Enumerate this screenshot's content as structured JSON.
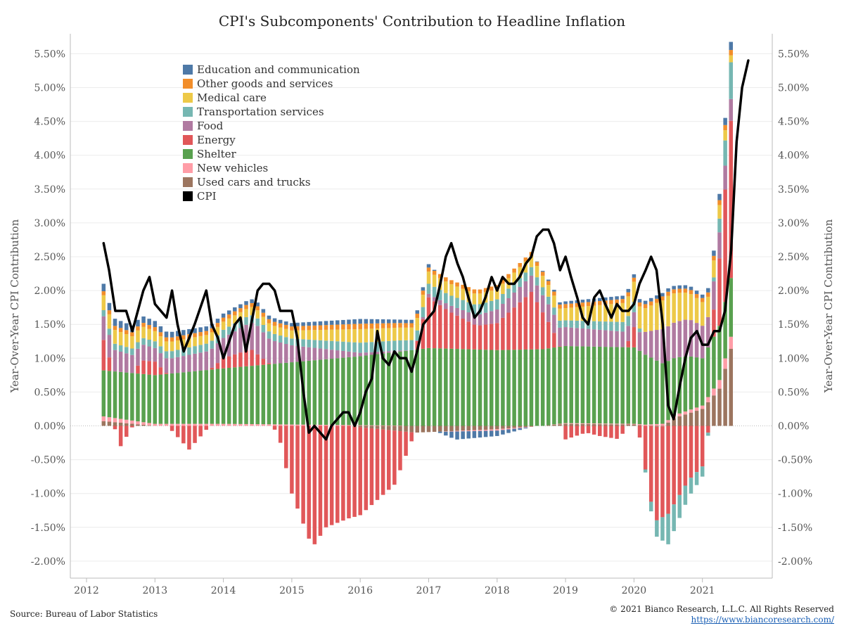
{
  "chart_data": {
    "type": "bar",
    "stacked": true,
    "title": "CPI's Subcomponents' Contribution to Headline Inflation",
    "ylabel_left": "Year-Over-Year CPI Contribution",
    "ylabel_right": "Year-Over-Year CPI Contribution",
    "ylim": [
      -2.0,
      5.6
    ],
    "y_ticks": [
      "-2.00%",
      "-1.50%",
      "-1.00%",
      "-0.50%",
      "0.00%",
      "0.50%",
      "1.00%",
      "1.50%",
      "2.00%",
      "2.50%",
      "3.00%",
      "3.50%",
      "4.00%",
      "4.50%",
      "5.00%",
      "5.50%"
    ],
    "x_ticks": [
      "2012",
      "2013",
      "2014",
      "2015",
      "2016",
      "2017",
      "2018",
      "2019",
      "2020",
      "2021"
    ],
    "x_start": "2012-04",
    "x_end": "2021-06",
    "legend_position": "top-left",
    "series": [
      {
        "name": "Used cars and trucks",
        "color": "#9c755f",
        "knots": [
          [
            2012.25,
            0.07
          ],
          [
            2013,
            0.0
          ],
          [
            2014,
            0.0
          ],
          [
            2015,
            0.0
          ],
          [
            2015.8,
            0.0
          ],
          [
            2016.8,
            -0.1
          ],
          [
            2018,
            -0.05
          ],
          [
            2019,
            0.03
          ],
          [
            2020,
            0.02
          ],
          [
            2020.4,
            -0.02
          ],
          [
            2020.6,
            0.12
          ],
          [
            2021,
            0.25
          ],
          [
            2021.25,
            0.55
          ],
          [
            2021.42,
            1.15
          ]
        ]
      },
      {
        "name": "New vehicles",
        "color": "#ff9da7",
        "knots": [
          [
            2012.25,
            0.07
          ],
          [
            2013,
            0.03
          ],
          [
            2014,
            0.03
          ],
          [
            2015,
            0.02
          ],
          [
            2016,
            0.01
          ],
          [
            2017,
            0.0
          ],
          [
            2018,
            -0.02
          ],
          [
            2019,
            0.01
          ],
          [
            2020,
            0.01
          ],
          [
            2020.6,
            0.04
          ],
          [
            2021,
            0.05
          ],
          [
            2021.42,
            0.18
          ]
        ]
      },
      {
        "name": "Shelter",
        "color": "#59a14f",
        "knots": [
          [
            2012.25,
            0.68
          ],
          [
            2013,
            0.72
          ],
          [
            2014,
            0.82
          ],
          [
            2015,
            0.92
          ],
          [
            2016,
            1.02
          ],
          [
            2017,
            1.15
          ],
          [
            2018,
            1.12
          ],
          [
            2019,
            1.14
          ],
          [
            2020,
            1.13
          ],
          [
            2020.4,
            0.9
          ],
          [
            2020.8,
            0.8
          ],
          [
            2021,
            0.7
          ],
          [
            2021.42,
            0.87
          ]
        ]
      },
      {
        "name": "Energy",
        "color": "#e15759",
        "knots": [
          [
            2012.25,
            0.45
          ],
          [
            2012.5,
            -0.3
          ],
          [
            2012.8,
            0.2
          ],
          [
            2013,
            0.2
          ],
          [
            2013.5,
            -0.35
          ],
          [
            2013.8,
            0.0
          ],
          [
            2014,
            0.15
          ],
          [
            2014.4,
            0.25
          ],
          [
            2014.8,
            -0.1
          ],
          [
            2015,
            -1.0
          ],
          [
            2015.3,
            -1.8
          ],
          [
            2015.5,
            -1.5
          ],
          [
            2016,
            -1.3
          ],
          [
            2016.5,
            -0.8
          ],
          [
            2016.8,
            0.0
          ],
          [
            2017,
            0.75
          ],
          [
            2017.3,
            0.55
          ],
          [
            2017.7,
            0.35
          ],
          [
            2018,
            0.4
          ],
          [
            2018.5,
            0.85
          ],
          [
            2018.8,
            0.3
          ],
          [
            2019,
            -0.2
          ],
          [
            2019.3,
            -0.1
          ],
          [
            2019.5,
            -0.15
          ],
          [
            2019.8,
            -0.2
          ],
          [
            2020,
            0.3
          ],
          [
            2020.3,
            -1.4
          ],
          [
            2020.5,
            -1.3
          ],
          [
            2020.8,
            -0.8
          ],
          [
            2021,
            -0.6
          ],
          [
            2021.2,
            0.6
          ],
          [
            2021.42,
            2.35
          ]
        ]
      },
      {
        "name": "Food",
        "color": "#b07aa1",
        "knots": [
          [
            2012.25,
            0.35
          ],
          [
            2013,
            0.2
          ],
          [
            2014,
            0.3
          ],
          [
            2014.5,
            0.42
          ],
          [
            2015,
            0.25
          ],
          [
            2016,
            0.05
          ],
          [
            2016.8,
            0.0
          ],
          [
            2017,
            0.05
          ],
          [
            2018,
            0.2
          ],
          [
            2019,
            0.28
          ],
          [
            2020,
            0.22
          ],
          [
            2020.4,
            0.5
          ],
          [
            2020.8,
            0.55
          ],
          [
            2021,
            0.48
          ],
          [
            2021.42,
            0.32
          ]
        ]
      },
      {
        "name": "Transportation services",
        "color": "#76b7b2",
        "knots": [
          [
            2012.25,
            0.09
          ],
          [
            2013,
            0.1
          ],
          [
            2014,
            0.12
          ],
          [
            2015,
            0.1
          ],
          [
            2016,
            0.15
          ],
          [
            2017,
            0.15
          ],
          [
            2018,
            0.15
          ],
          [
            2019,
            0.1
          ],
          [
            2020,
            0.15
          ],
          [
            2020.3,
            -0.2
          ],
          [
            2020.5,
            -0.45
          ],
          [
            2020.8,
            -0.25
          ],
          [
            2021,
            -0.15
          ],
          [
            2021.2,
            0.1
          ],
          [
            2021.42,
            0.55
          ]
        ]
      },
      {
        "name": "Medical care",
        "color": "#edc948",
        "knots": [
          [
            2012.25,
            0.22
          ],
          [
            2013,
            0.15
          ],
          [
            2014,
            0.12
          ],
          [
            2015,
            0.12
          ],
          [
            2016,
            0.2
          ],
          [
            2017,
            0.18
          ],
          [
            2018,
            0.15
          ],
          [
            2019,
            0.18
          ],
          [
            2020,
            0.3
          ],
          [
            2020.5,
            0.45
          ],
          [
            2021,
            0.35
          ],
          [
            2021.42,
            0.1
          ]
        ]
      },
      {
        "name": "Other goods and services",
        "color": "#f28e2b",
        "knots": [
          [
            2012.25,
            0.06
          ],
          [
            2013,
            0.06
          ],
          [
            2014,
            0.06
          ],
          [
            2015,
            0.06
          ],
          [
            2016,
            0.08
          ],
          [
            2017,
            0.06
          ],
          [
            2018,
            0.06
          ],
          [
            2019,
            0.06
          ],
          [
            2020,
            0.06
          ],
          [
            2021,
            0.06
          ],
          [
            2021.42,
            0.08
          ]
        ]
      },
      {
        "name": "Education and communication",
        "color": "#4e79a7",
        "knots": [
          [
            2012.25,
            0.11
          ],
          [
            2013,
            0.09
          ],
          [
            2014,
            0.06
          ],
          [
            2015,
            0.05
          ],
          [
            2016,
            0.07
          ],
          [
            2016.6,
            0.05
          ],
          [
            2017,
            0.05
          ],
          [
            2017.4,
            -0.12
          ],
          [
            2018,
            -0.08
          ],
          [
            2018.5,
            0.0
          ],
          [
            2019,
            0.04
          ],
          [
            2020,
            0.05
          ],
          [
            2021,
            0.05
          ],
          [
            2021.42,
            0.12
          ]
        ]
      }
    ],
    "cpi": {
      "name": "CPI",
      "color": "#000000",
      "knots": [
        [
          2012.25,
          2.7
        ],
        [
          2012.33,
          2.3
        ],
        [
          2012.42,
          1.7
        ],
        [
          2012.58,
          1.7
        ],
        [
          2012.67,
          1.4
        ],
        [
          2012.83,
          2.0
        ],
        [
          2012.92,
          2.2
        ],
        [
          2013.0,
          1.8
        ],
        [
          2013.17,
          1.6
        ],
        [
          2013.25,
          2.0
        ],
        [
          2013.33,
          1.5
        ],
        [
          2013.42,
          1.1
        ],
        [
          2013.58,
          1.5
        ],
        [
          2013.75,
          2.0
        ],
        [
          2013.83,
          1.5
        ],
        [
          2013.92,
          1.3
        ],
        [
          2014.0,
          1.0
        ],
        [
          2014.17,
          1.5
        ],
        [
          2014.25,
          1.6
        ],
        [
          2014.33,
          1.1
        ],
        [
          2014.5,
          2.0
        ],
        [
          2014.58,
          2.1
        ],
        [
          2014.67,
          2.1
        ],
        [
          2014.75,
          2.0
        ],
        [
          2014.83,
          1.7
        ],
        [
          2014.92,
          1.7
        ],
        [
          2015.0,
          1.7
        ],
        [
          2015.08,
          1.3
        ],
        [
          2015.17,
          0.5
        ],
        [
          2015.25,
          -0.1
        ],
        [
          2015.33,
          0.0
        ],
        [
          2015.5,
          -0.2
        ],
        [
          2015.58,
          0.0
        ],
        [
          2015.75,
          0.2
        ],
        [
          2015.83,
          0.2
        ],
        [
          2015.92,
          0.0
        ],
        [
          2016.0,
          0.2
        ],
        [
          2016.08,
          0.5
        ],
        [
          2016.17,
          0.7
        ],
        [
          2016.25,
          1.4
        ],
        [
          2016.33,
          1.0
        ],
        [
          2016.42,
          0.9
        ],
        [
          2016.5,
          1.1
        ],
        [
          2016.58,
          1.0
        ],
        [
          2016.67,
          1.0
        ],
        [
          2016.75,
          0.8
        ],
        [
          2016.83,
          1.1
        ],
        [
          2016.92,
          1.5
        ],
        [
          2017.08,
          1.7
        ],
        [
          2017.17,
          2.1
        ],
        [
          2017.25,
          2.5
        ],
        [
          2017.33,
          2.7
        ],
        [
          2017.42,
          2.4
        ],
        [
          2017.5,
          2.2
        ],
        [
          2017.58,
          1.9
        ],
        [
          2017.67,
          1.6
        ],
        [
          2017.75,
          1.7
        ],
        [
          2017.83,
          1.9
        ],
        [
          2017.92,
          2.2
        ],
        [
          2018.0,
          2.0
        ],
        [
          2018.08,
          2.2
        ],
        [
          2018.17,
          2.1
        ],
        [
          2018.25,
          2.1
        ],
        [
          2018.33,
          2.2
        ],
        [
          2018.42,
          2.4
        ],
        [
          2018.5,
          2.5
        ],
        [
          2018.58,
          2.8
        ],
        [
          2018.67,
          2.9
        ],
        [
          2018.75,
          2.9
        ],
        [
          2018.83,
          2.7
        ],
        [
          2018.92,
          2.3
        ],
        [
          2019.0,
          2.5
        ],
        [
          2019.08,
          2.2
        ],
        [
          2019.17,
          1.9
        ],
        [
          2019.25,
          1.6
        ],
        [
          2019.33,
          1.5
        ],
        [
          2019.42,
          1.9
        ],
        [
          2019.5,
          2.0
        ],
        [
          2019.58,
          1.8
        ],
        [
          2019.67,
          1.6
        ],
        [
          2019.75,
          1.8
        ],
        [
          2019.83,
          1.7
        ],
        [
          2019.92,
          1.7
        ],
        [
          2020.0,
          1.8
        ],
        [
          2020.08,
          2.1
        ],
        [
          2020.17,
          2.3
        ],
        [
          2020.25,
          2.5
        ],
        [
          2020.33,
          2.3
        ],
        [
          2020.42,
          1.5
        ],
        [
          2020.5,
          0.3
        ],
        [
          2020.58,
          0.1
        ],
        [
          2020.67,
          0.6
        ],
        [
          2020.75,
          1.0
        ],
        [
          2020.83,
          1.3
        ],
        [
          2020.92,
          1.4
        ],
        [
          2021.0,
          1.2
        ],
        [
          2021.08,
          1.2
        ],
        [
          2021.17,
          1.4
        ],
        [
          2021.25,
          1.4
        ],
        [
          2021.33,
          1.7
        ],
        [
          2021.42,
          2.6
        ],
        [
          2021.5,
          4.2
        ],
        [
          2021.58,
          5.0
        ],
        [
          2021.67,
          5.4
        ]
      ]
    }
  },
  "footer": {
    "source": "Source: Bureau of Labor Statistics",
    "copyright": "© 2021 Bianco Research, L.L.C. All Rights Reserved",
    "url": "https://www.biancoresearch.com/"
  }
}
